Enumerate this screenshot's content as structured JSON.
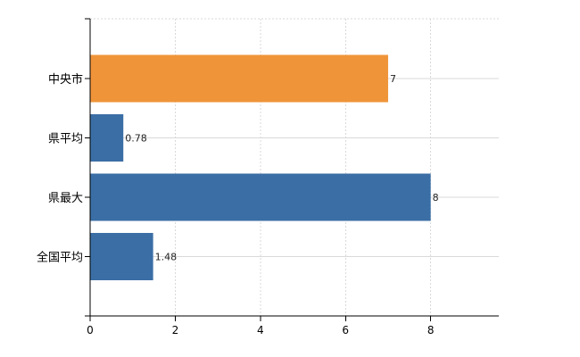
{
  "chart_data": {
    "type": "bar",
    "orientation": "horizontal",
    "categories": [
      "中央市",
      "県平均",
      "県最大",
      "全国平均"
    ],
    "values": [
      7,
      0.78,
      8,
      1.48
    ],
    "value_labels": [
      "7",
      "0.78",
      "8",
      "1.48"
    ],
    "bar_colors": [
      "#f0943a",
      "#3a6ea5",
      "#3a6ea5",
      "#3a6ea5"
    ],
    "xlim": [
      0,
      9.6
    ],
    "x_ticks": [
      0,
      2,
      4,
      6,
      8
    ],
    "x_tick_labels": [
      "0",
      "2",
      "4",
      "6",
      "8"
    ],
    "title": "",
    "xlabel": "",
    "ylabel": "",
    "grid": true,
    "legend": false
  }
}
